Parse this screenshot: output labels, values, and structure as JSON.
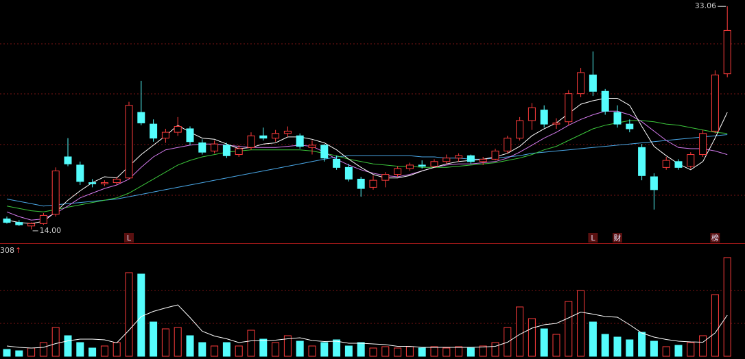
{
  "chart_data": [
    {
      "type": "candlestick",
      "open": [
        14.9,
        14.6,
        14.3,
        14.5,
        15.3,
        20.2,
        19.5,
        18.0,
        17.9,
        18.0,
        18.4,
        24.0,
        23.0,
        21.8,
        22.3,
        22.6,
        21.4,
        20.7,
        21.2,
        20.4,
        21.0,
        22.0,
        21.8,
        22.2,
        22.0,
        21.0,
        21.2,
        20.0,
        19.3,
        18.3,
        17.6,
        18.2,
        18.7,
        19.2,
        19.5,
        19.4,
        19.8,
        20.1,
        20.3,
        19.8,
        20.0,
        20.7,
        21.8,
        23.3,
        24.2,
        23.0,
        23.2,
        25.6,
        27.2,
        25.8,
        24.0,
        23.0,
        21.0,
        18.5,
        19.3,
        19.8,
        19.4,
        20.4,
        22.4,
        27.3
      ],
      "high": [
        15.1,
        14.8,
        14.6,
        15.4,
        19.3,
        21.8,
        19.8,
        18.3,
        18.2,
        18.5,
        24.9,
        26.7,
        23.4,
        22.6,
        23.6,
        22.8,
        21.7,
        21.6,
        21.4,
        21.2,
        22.3,
        22.7,
        22.5,
        22.8,
        22.2,
        21.6,
        21.3,
        20.3,
        19.6,
        18.5,
        18.6,
        18.9,
        19.4,
        19.7,
        19.9,
        20.0,
        20.4,
        20.5,
        20.4,
        20.2,
        20.9,
        22.0,
        23.6,
        24.8,
        24.6,
        23.5,
        25.9,
        27.8,
        29.2,
        26.0,
        24.6,
        23.4,
        21.3,
        18.8,
        20.2,
        20.0,
        20.6,
        22.5,
        27.6,
        33.06
      ],
      "low": [
        14.5,
        14.3,
        14.0,
        14.4,
        15.1,
        19.4,
        17.8,
        17.6,
        17.7,
        17.8,
        18.3,
        22.9,
        21.5,
        21.4,
        22.0,
        21.2,
        20.4,
        20.5,
        20.1,
        20.2,
        20.8,
        21.6,
        21.5,
        21.9,
        20.9,
        20.4,
        19.8,
        19.1,
        18.1,
        16.8,
        17.4,
        17.6,
        18.5,
        19.0,
        19.2,
        19.3,
        19.6,
        19.8,
        19.6,
        19.5,
        19.9,
        20.5,
        21.6,
        22.5,
        22.7,
        22.6,
        22.9,
        25.3,
        25.4,
        23.8,
        22.7,
        22.3,
        18.2,
        15.7,
        19.1,
        19.1,
        19.2,
        20.2,
        22.2,
        27.0
      ],
      "close": [
        14.6,
        14.4,
        14.5,
        15.2,
        19.0,
        19.6,
        18.1,
        17.9,
        18.0,
        18.3,
        24.6,
        23.1,
        21.8,
        22.3,
        22.8,
        21.5,
        20.6,
        21.3,
        20.3,
        20.9,
        22.0,
        21.8,
        22.2,
        22.4,
        21.1,
        21.2,
        20.1,
        19.3,
        18.3,
        17.5,
        18.2,
        18.7,
        19.2,
        19.5,
        19.4,
        19.8,
        20.1,
        20.3,
        19.8,
        20.0,
        20.7,
        21.8,
        23.3,
        24.4,
        23.0,
        23.1,
        25.6,
        27.4,
        25.8,
        24.1,
        23.0,
        22.6,
        18.6,
        17.4,
        19.9,
        19.3,
        20.4,
        22.2,
        27.2,
        31.0
      ],
      "ylim": [
        13,
        33.6
      ],
      "up_color": "#ff3c3c",
      "down_color": "#54fcfc",
      "series": [
        {
          "color": "#4aa8e8",
          "values": [
            16.6,
            16.4,
            16.2,
            16.0,
            16.1,
            16.2,
            16.3,
            16.4,
            16.5,
            16.6,
            16.8,
            17.0,
            17.2,
            17.4,
            17.6,
            17.8,
            18.0,
            18.2,
            18.4,
            18.6,
            18.8,
            19.0,
            19.2,
            19.4,
            19.6,
            19.8,
            20.0,
            20.2,
            20.3,
            20.3,
            20.3,
            20.3,
            20.3,
            20.3,
            20.2,
            20.2,
            20.1,
            20.1,
            20.0,
            20.0,
            20.1,
            20.2,
            20.3,
            20.5,
            20.6,
            20.7,
            20.8,
            20.9,
            21.0,
            21.1,
            21.2,
            21.3,
            21.4,
            21.5,
            21.6,
            21.7,
            21.8,
            21.9,
            22.0,
            22.1
          ]
        },
        {
          "color": "#3cc83c",
          "values": [
            16.0,
            15.8,
            15.6,
            15.5,
            15.7,
            15.9,
            16.1,
            16.3,
            16.5,
            16.7,
            17.1,
            17.7,
            18.3,
            18.9,
            19.5,
            19.9,
            20.2,
            20.4,
            20.6,
            20.7,
            20.8,
            20.8,
            20.8,
            20.8,
            20.8,
            20.7,
            20.5,
            20.3,
            20.0,
            19.8,
            19.6,
            19.5,
            19.4,
            19.4,
            19.3,
            19.3,
            19.3,
            19.4,
            19.5,
            19.6,
            19.7,
            19.9,
            20.1,
            20.4,
            20.8,
            21.1,
            21.6,
            22.1,
            22.6,
            22.9,
            23.1,
            23.3,
            23.3,
            23.2,
            23.0,
            22.9,
            22.7,
            22.5,
            22.3,
            22.2
          ]
        },
        {
          "color": "#d67cf0",
          "values": [
            15.5,
            15.1,
            14.8,
            14.9,
            15.4,
            16.0,
            16.7,
            17.1,
            17.5,
            17.8,
            18.3,
            19.3,
            20.2,
            20.8,
            21.0,
            21.2,
            21.3,
            21.3,
            21.2,
            21.1,
            21.0,
            21.0,
            21.0,
            21.1,
            21.2,
            21.1,
            20.6,
            20.0,
            19.5,
            19.1,
            18.8,
            18.6,
            18.5,
            18.7,
            19.0,
            19.3,
            19.5,
            19.6,
            19.6,
            19.7,
            19.8,
            20.1,
            20.6,
            21.2,
            21.8,
            22.3,
            22.9,
            23.4,
            23.8,
            24.1,
            24.1,
            23.8,
            23.2,
            22.4,
            21.6,
            21.0,
            20.9,
            20.9,
            20.7,
            20.4
          ]
        },
        {
          "color": "#ffffff",
          "values": [
            14.8,
            14.6,
            14.5,
            14.7,
            15.5,
            16.5,
            17.3,
            18.0,
            18.5,
            18.4,
            19.4,
            20.4,
            21.2,
            22.0,
            22.9,
            22.3,
            21.8,
            21.7,
            21.3,
            20.9,
            21.0,
            21.3,
            21.4,
            21.9,
            21.9,
            21.7,
            21.4,
            20.8,
            20.0,
            19.3,
            18.7,
            18.4,
            18.4,
            18.6,
            19.0,
            19.3,
            19.6,
            19.8,
            19.9,
            20.0,
            20.2,
            20.5,
            21.1,
            22.0,
            22.6,
            23.1,
            23.9,
            24.7,
            25.0,
            25.2,
            25.2,
            24.6,
            22.8,
            21.1,
            20.3,
            19.6,
            19.1,
            19.8,
            21.8,
            24.0
          ]
        }
      ],
      "max_marker": {
        "value": 33.06,
        "label": "33.06"
      },
      "min_marker": {
        "value": 14,
        "label": "14.00"
      },
      "events": [
        null,
        null,
        null,
        null,
        null,
        null,
        null,
        null,
        null,
        null,
        "L",
        null,
        null,
        null,
        null,
        null,
        null,
        null,
        null,
        null,
        null,
        null,
        null,
        null,
        null,
        null,
        null,
        null,
        null,
        null,
        null,
        null,
        null,
        null,
        null,
        null,
        null,
        null,
        null,
        null,
        null,
        null,
        null,
        null,
        null,
        null,
        null,
        null,
        "L",
        null,
        "财",
        null,
        null,
        null,
        null,
        null,
        null,
        null,
        "榜",
        null
      ]
    },
    {
      "type": "bar",
      "values": [
        20,
        16,
        24,
        40,
        84,
        60,
        40,
        24,
        30,
        40,
        244,
        240,
        100,
        80,
        84,
        60,
        40,
        30,
        40,
        30,
        76,
        50,
        40,
        60,
        44,
        30,
        40,
        48,
        30,
        40,
        24,
        28,
        24,
        28,
        24,
        28,
        24,
        28,
        24,
        30,
        40,
        84,
        144,
        110,
        80,
        64,
        160,
        192,
        100,
        64,
        56,
        48,
        70,
        44,
        28,
        32,
        40,
        60,
        180,
        288
      ],
      "ylim": [
        0,
        308
      ],
      "series": [
        {
          "color": "#ffffff",
          "values": [
            30,
            26,
            24,
            26,
            37,
            45,
            50,
            50,
            48,
            39,
            76,
            116,
            131,
            141,
            150,
            113,
            73,
            59,
            51,
            40,
            45,
            45,
            47,
            51,
            54,
            46,
            43,
            44,
            38,
            38,
            36,
            34,
            29,
            29,
            26,
            26,
            26,
            26,
            26,
            27,
            29,
            41,
            64,
            82,
            92,
            96,
            112,
            129,
            123,
            116,
            114,
            92,
            68,
            56,
            49,
            44,
            42,
            41,
            68,
            120
          ]
        }
      ]
    }
  ]
}
